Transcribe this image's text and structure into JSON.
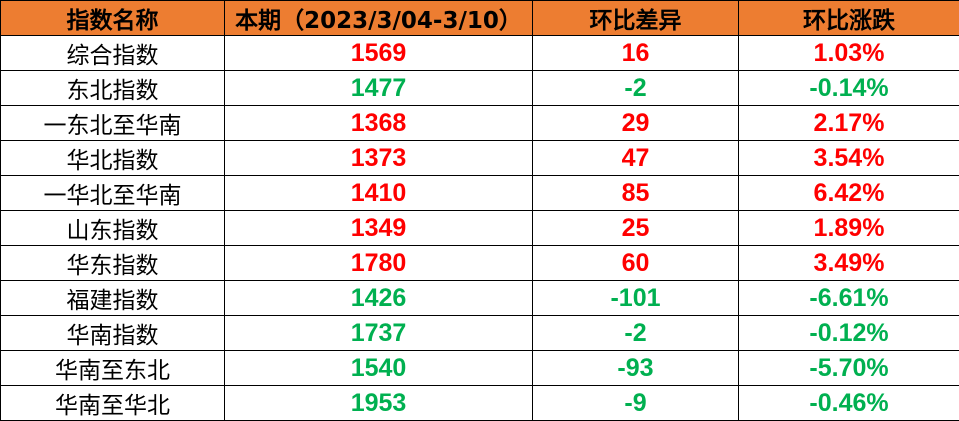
{
  "colors": {
    "header_bg": "#ED7D31",
    "up": "#FF0000",
    "down": "#00B050"
  },
  "headers": [
    "指数名称",
    "本期（2023/3/04-3/10）",
    "环比差异",
    "环比涨跌"
  ],
  "rows": [
    {
      "name": "综合指数",
      "value": "1569",
      "diff": "16",
      "pct": "1.03%",
      "trend": "up"
    },
    {
      "name": "东北指数",
      "value": "1477",
      "diff": "-2",
      "pct": "-0.14%",
      "trend": "down"
    },
    {
      "name": "一东北至华南",
      "value": "1368",
      "diff": "29",
      "pct": "2.17%",
      "trend": "up"
    },
    {
      "name": "华北指数",
      "value": "1373",
      "diff": "47",
      "pct": "3.54%",
      "trend": "up"
    },
    {
      "name": "一华北至华南",
      "value": "1410",
      "diff": "85",
      "pct": "6.42%",
      "trend": "up"
    },
    {
      "name": "山东指数",
      "value": "1349",
      "diff": "25",
      "pct": "1.89%",
      "trend": "up"
    },
    {
      "name": "华东指数",
      "value": "1780",
      "diff": "60",
      "pct": "3.49%",
      "trend": "up"
    },
    {
      "name": "福建指数",
      "value": "1426",
      "diff": "-101",
      "pct": "-6.61%",
      "trend": "down"
    },
    {
      "name": "华南指数",
      "value": "1737",
      "diff": "-2",
      "pct": "-0.12%",
      "trend": "down"
    },
    {
      "name": "华南至东北",
      "value": "1540",
      "diff": "-93",
      "pct": "-5.70%",
      "trend": "down"
    },
    {
      "name": "华南至华北",
      "value": "1953",
      "diff": "-9",
      "pct": "-0.46%",
      "trend": "down"
    }
  ]
}
